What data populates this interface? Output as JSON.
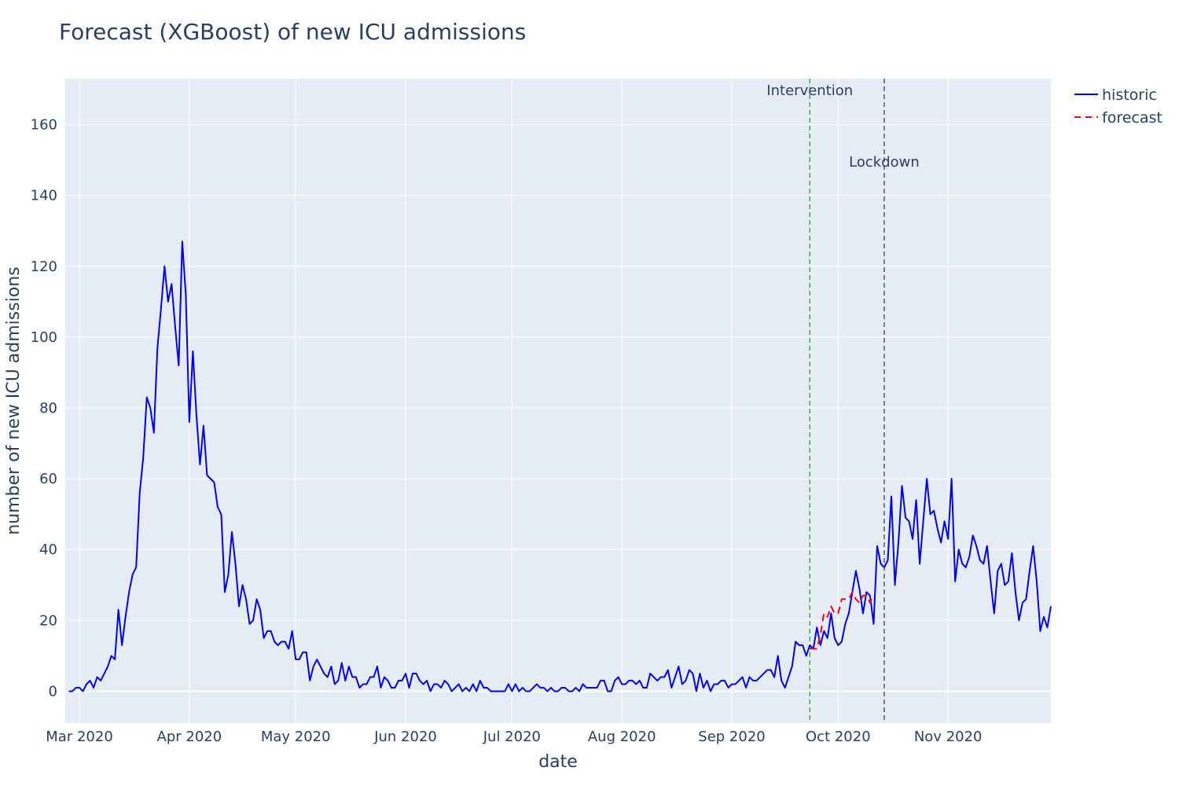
{
  "chart_data": {
    "type": "line",
    "title": "Forecast (XGBoost) of new ICU admissions",
    "xlabel": "date",
    "ylabel": "number of new ICU admissions",
    "x_range": [
      "2020-02-26",
      "2020-11-30"
    ],
    "ylim": [
      -9,
      173
    ],
    "y_ticks": [
      0,
      20,
      40,
      60,
      80,
      100,
      120,
      140,
      160
    ],
    "x_ticks": [
      {
        "date": "2020-03-01",
        "label": "Mar 2020"
      },
      {
        "date": "2020-04-01",
        "label": "Apr 2020"
      },
      {
        "date": "2020-05-01",
        "label": "May 2020"
      },
      {
        "date": "2020-06-01",
        "label": "Jun 2020"
      },
      {
        "date": "2020-07-01",
        "label": "Jul 2020"
      },
      {
        "date": "2020-08-01",
        "label": "Aug 2020"
      },
      {
        "date": "2020-09-01",
        "label": "Sep 2020"
      },
      {
        "date": "2020-10-01",
        "label": "Oct 2020"
      },
      {
        "date": "2020-11-01",
        "label": "Nov 2020"
      }
    ],
    "grid": true,
    "legend_position": "top-right",
    "series": [
      {
        "name": "historic",
        "color": "#0000ff",
        "dash": "solid",
        "start": "2020-02-27",
        "values": [
          0,
          0,
          1,
          1,
          0,
          2,
          3,
          1,
          4,
          3,
          5,
          7,
          10,
          9,
          23,
          13,
          21,
          28,
          33,
          35,
          56,
          66,
          83,
          80,
          73,
          97,
          108,
          120,
          110,
          115,
          103,
          92,
          127,
          112,
          76,
          96,
          78,
          64,
          75,
          61,
          60,
          59,
          52,
          50,
          28,
          33,
          45,
          36,
          24,
          30,
          26,
          19,
          20,
          26,
          23,
          15,
          17,
          17,
          14,
          13,
          14,
          14,
          12,
          17,
          9,
          9,
          11,
          11,
          3,
          7,
          9,
          7,
          5,
          4,
          7,
          2,
          3,
          8,
          3,
          7,
          4,
          4,
          1,
          2,
          2,
          4,
          4,
          7,
          1,
          4,
          3,
          1,
          1,
          3,
          3,
          5,
          1,
          5,
          5,
          3,
          2,
          3,
          0,
          2,
          2,
          1,
          3,
          2,
          0,
          1,
          2,
          0,
          1,
          0,
          2,
          0,
          3,
          1,
          1,
          0,
          0,
          0,
          0,
          0,
          2,
          0,
          2,
          0,
          1,
          0,
          0,
          1,
          2,
          1,
          1,
          0,
          1,
          0,
          0,
          1,
          1,
          0,
          0,
          1,
          0,
          2,
          1,
          1,
          1,
          1,
          3,
          3,
          0,
          0,
          3,
          4,
          2,
          2,
          3,
          3,
          2,
          3,
          1,
          1,
          5,
          4,
          3,
          4,
          4,
          6,
          1,
          4,
          7,
          2,
          3,
          6,
          5,
          0,
          5,
          1,
          3,
          0,
          2,
          2,
          3,
          3,
          1,
          2,
          2,
          3,
          4,
          1,
          4,
          3,
          3,
          4,
          5,
          6,
          6,
          4,
          10,
          3,
          1,
          4,
          7,
          14,
          13,
          13,
          10,
          13,
          12,
          18,
          13,
          17,
          15,
          22,
          15,
          13,
          14,
          19,
          22,
          28,
          34,
          29,
          22,
          28,
          27,
          19,
          41,
          36,
          35,
          37,
          55,
          30,
          42,
          58,
          49,
          48,
          43,
          54,
          36,
          48,
          60,
          50,
          51,
          46,
          42,
          48,
          43,
          60,
          31,
          40,
          36,
          35,
          38,
          44,
          41,
          37,
          36,
          41,
          31,
          22,
          34,
          36,
          30,
          31,
          39,
          28,
          20,
          25,
          26,
          34,
          41,
          31,
          17,
          21,
          18,
          24
        ]
      },
      {
        "name": "forecast",
        "color": "#ff0000",
        "dash": "dashed",
        "start": "2020-09-23",
        "values": [
          12,
          12,
          12,
          16,
          22,
          21,
          24,
          22,
          22,
          26,
          26,
          26,
          28,
          26,
          25,
          27,
          27,
          25,
          27
        ]
      }
    ],
    "annotations": [
      {
        "label": "Intervention",
        "date": "2020-09-23",
        "color": "#2ca02c",
        "style": "dashed"
      },
      {
        "label": "Lockdown",
        "date": "2020-10-14",
        "color": "#444444",
        "style": "dashed"
      }
    ]
  }
}
